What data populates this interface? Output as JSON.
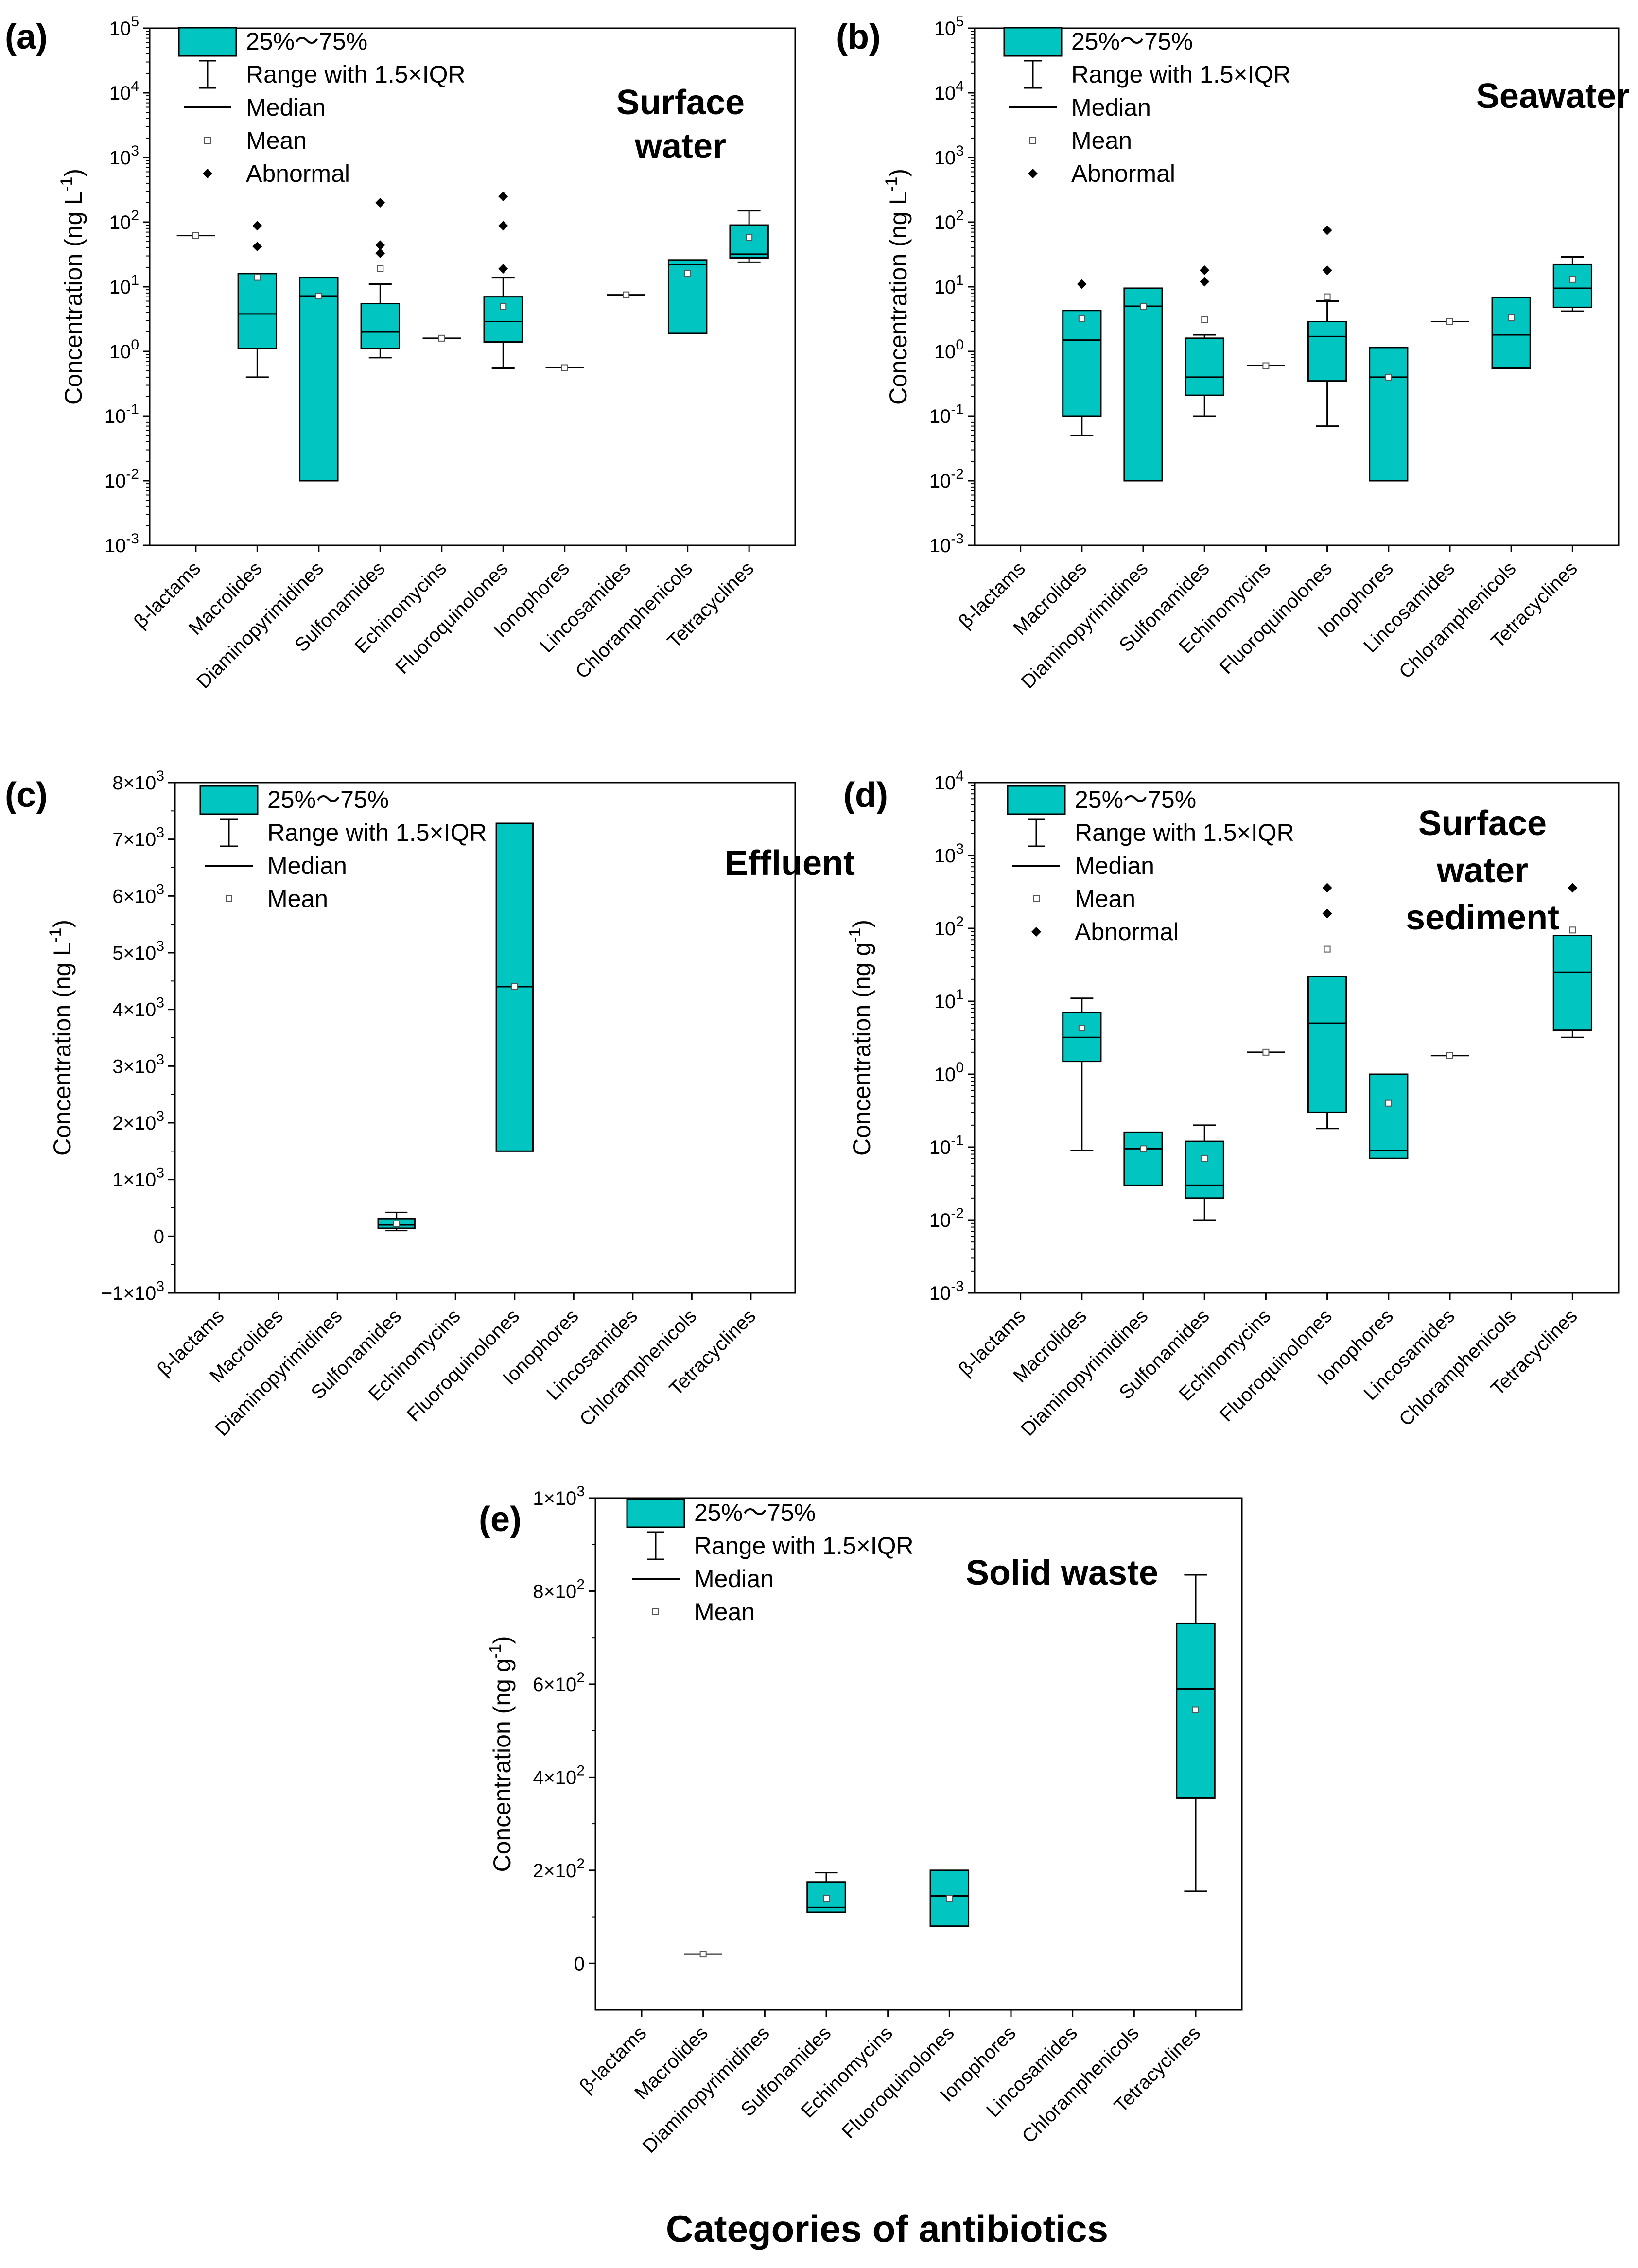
{
  "figure": {
    "xlabel": "Categories of antibiotics",
    "box_color": "#00C5C0",
    "legend": {
      "box": "25%～75%",
      "range": "Range with 1.5×IQR",
      "median": "Median",
      "mean": "Mean",
      "outlier": "Abnormal"
    }
  },
  "chart_data": [
    {
      "id": "a",
      "panel_label": "(a)",
      "title_lines": [
        "Surface",
        "water"
      ],
      "type": "box",
      "scale": "log",
      "ylim": [
        0.001,
        100000
      ],
      "ylabel": "Concentration (ng L",
      "ylabel_sup": "-1",
      "ylabel_end": ")",
      "yticks": [
        {
          "v": 0.001,
          "b": "10",
          "e": "-3"
        },
        {
          "v": 0.01,
          "b": "10",
          "e": "-2"
        },
        {
          "v": 0.1,
          "b": "10",
          "e": "-1"
        },
        {
          "v": 1,
          "b": "10",
          "e": "0"
        },
        {
          "v": 10,
          "b": "10",
          "e": "1"
        },
        {
          "v": 100,
          "b": "10",
          "e": "2"
        },
        {
          "v": 1000,
          "b": "10",
          "e": "3"
        },
        {
          "v": 10000,
          "b": "10",
          "e": "4"
        },
        {
          "v": 100000,
          "b": "10",
          "e": "5"
        }
      ],
      "legend_items": [
        "box",
        "range",
        "median",
        "mean",
        "outlier"
      ],
      "categories": [
        "β-lactams",
        "Macrolides",
        "Diaminopyrimidines",
        "Sulfonamides",
        "Echinomycins",
        "Fluoroquinolones",
        "Ionophores",
        "Lincosamides",
        "Chloramphenicols",
        "Tetracyclines"
      ],
      "boxes": [
        {
          "q1": 62,
          "q3": 62,
          "median": 62,
          "mean": 62,
          "wlo": 62,
          "whi": 62,
          "outliers": []
        },
        {
          "q1": 1.1,
          "q3": 16,
          "median": 3.8,
          "mean": 14,
          "wlo": 0.4,
          "whi": 16,
          "outliers": [
            42,
            88
          ]
        },
        {
          "q1": 0.01,
          "q3": 14,
          "median": 7.2,
          "mean": 7.2,
          "wlo": 0.01,
          "whi": 14,
          "outliers": []
        },
        {
          "q1": 1.1,
          "q3": 5.5,
          "median": 2.0,
          "mean": 19,
          "wlo": 0.8,
          "whi": 11,
          "outliers": [
            33,
            44,
            200
          ]
        },
        {
          "q1": 1.6,
          "q3": 1.6,
          "median": 1.6,
          "mean": 1.6,
          "wlo": 1.6,
          "whi": 1.6,
          "outliers": []
        },
        {
          "q1": 1.4,
          "q3": 7.0,
          "median": 2.9,
          "mean": 5.0,
          "wlo": 0.55,
          "whi": 14,
          "outliers": [
            19,
            88,
            250
          ]
        },
        {
          "q1": 0.56,
          "q3": 0.56,
          "median": 0.56,
          "mean": 0.56,
          "wlo": 0.56,
          "whi": 0.56,
          "outliers": []
        },
        {
          "q1": 7.5,
          "q3": 7.5,
          "median": 7.5,
          "mean": 7.5,
          "wlo": 7.5,
          "whi": 7.5,
          "outliers": []
        },
        {
          "q1": 1.9,
          "q3": 26,
          "median": 22,
          "mean": 16,
          "wlo": 1.9,
          "whi": 26,
          "outliers": []
        },
        {
          "q1": 28,
          "q3": 90,
          "median": 32,
          "mean": 58,
          "wlo": 24,
          "whi": 150,
          "outliers": []
        }
      ]
    },
    {
      "id": "b",
      "panel_label": "(b)",
      "title_lines": [
        "Seawater"
      ],
      "type": "box",
      "scale": "log",
      "ylim": [
        0.001,
        100000
      ],
      "ylabel": "Concentration (ng L",
      "ylabel_sup": "-1",
      "ylabel_end": ")",
      "yticks": [
        {
          "v": 0.001,
          "b": "10",
          "e": "-3"
        },
        {
          "v": 0.01,
          "b": "10",
          "e": "-2"
        },
        {
          "v": 0.1,
          "b": "10",
          "e": "-1"
        },
        {
          "v": 1,
          "b": "10",
          "e": "0"
        },
        {
          "v": 10,
          "b": "10",
          "e": "1"
        },
        {
          "v": 100,
          "b": "10",
          "e": "2"
        },
        {
          "v": 1000,
          "b": "10",
          "e": "3"
        },
        {
          "v": 10000,
          "b": "10",
          "e": "4"
        },
        {
          "v": 100000,
          "b": "10",
          "e": "5"
        }
      ],
      "legend_items": [
        "box",
        "range",
        "median",
        "mean",
        "outlier"
      ],
      "categories": [
        "β-lactams",
        "Macrolides",
        "Diaminopyrimidines",
        "Sulfonamides",
        "Echinomycins",
        "Fluoroquinolones",
        "Ionophores",
        "Lincosamides",
        "Chloramphenicols",
        "Tetracyclines"
      ],
      "boxes": [
        null,
        {
          "q1": 0.1,
          "q3": 4.3,
          "median": 1.5,
          "mean": 3.2,
          "wlo": 0.05,
          "whi": 4.3,
          "outliers": [
            11
          ]
        },
        {
          "q1": 0.01,
          "q3": 9.5,
          "median": 5.0,
          "mean": 5.0,
          "wlo": 0.01,
          "whi": 9.5,
          "outliers": []
        },
        {
          "q1": 0.21,
          "q3": 1.6,
          "median": 0.4,
          "mean": 3.1,
          "wlo": 0.1,
          "whi": 1.8,
          "outliers": [
            12,
            18
          ]
        },
        {
          "q1": 0.6,
          "q3": 0.6,
          "median": 0.6,
          "mean": 0.6,
          "wlo": 0.6,
          "whi": 0.6,
          "outliers": []
        },
        {
          "q1": 0.35,
          "q3": 2.9,
          "median": 1.7,
          "mean": 7.0,
          "wlo": 0.07,
          "whi": 6.0,
          "outliers": [
            18,
            75
          ]
        },
        {
          "q1": 0.01,
          "q3": 1.15,
          "median": 0.4,
          "mean": 0.4,
          "wlo": 0.01,
          "whi": 1.15,
          "outliers": []
        },
        {
          "q1": 2.9,
          "q3": 2.9,
          "median": 2.9,
          "mean": 2.9,
          "wlo": 2.9,
          "whi": 2.9,
          "outliers": []
        },
        {
          "q1": 0.55,
          "q3": 6.8,
          "median": 1.8,
          "mean": 3.3,
          "wlo": 0.55,
          "whi": 6.8,
          "outliers": []
        },
        {
          "q1": 4.8,
          "q3": 22,
          "median": 9.5,
          "mean": 13,
          "wlo": 4.2,
          "whi": 29,
          "outliers": []
        }
      ]
    },
    {
      "id": "c",
      "panel_label": "(c)",
      "title_lines": [
        "Effluent"
      ],
      "type": "box",
      "scale": "linear",
      "ylim": [
        -1000,
        8000
      ],
      "ylabel": "Concentration (ng L",
      "ylabel_sup": "-1",
      "ylabel_end": ")",
      "yticks": [
        {
          "v": -1000,
          "b": "−1×10",
          "e": "3"
        },
        {
          "v": 0,
          "b": "0",
          "e": ""
        },
        {
          "v": 1000,
          "b": "1×10",
          "e": "3"
        },
        {
          "v": 2000,
          "b": "2×10",
          "e": "3"
        },
        {
          "v": 3000,
          "b": "3×10",
          "e": "3"
        },
        {
          "v": 4000,
          "b": "4×10",
          "e": "3"
        },
        {
          "v": 5000,
          "b": "5×10",
          "e": "3"
        },
        {
          "v": 6000,
          "b": "6×10",
          "e": "3"
        },
        {
          "v": 7000,
          "b": "7×10",
          "e": "3"
        },
        {
          "v": 8000,
          "b": "8×10",
          "e": "3"
        }
      ],
      "legend_items": [
        "box",
        "range",
        "median",
        "mean"
      ],
      "categories": [
        "β-lactams",
        "Macrolides",
        "Diaminopyrimidines",
        "Sulfonamides",
        "Echinomycins",
        "Fluoroquinolones",
        "Ionophores",
        "Lincosamides",
        "Chloramphenicols",
        "Tetracyclines"
      ],
      "boxes": [
        null,
        null,
        null,
        {
          "q1": 140,
          "q3": 310,
          "median": 200,
          "mean": 220,
          "wlo": 100,
          "whi": 420,
          "outliers": []
        },
        null,
        {
          "q1": 1500,
          "q3": 7280,
          "median": 4400,
          "mean": 4400,
          "wlo": 1500,
          "whi": 7280,
          "outliers": []
        },
        null,
        null,
        null,
        null
      ]
    },
    {
      "id": "d",
      "panel_label": "(d)",
      "title_lines": [
        "Surface",
        "water",
        "sediment"
      ],
      "type": "box",
      "scale": "log",
      "ylim": [
        0.001,
        10000
      ],
      "ylabel": "Concentration (ng g",
      "ylabel_sup": "-1",
      "ylabel_end": ")",
      "yticks": [
        {
          "v": 0.001,
          "b": "10",
          "e": "-3"
        },
        {
          "v": 0.01,
          "b": "10",
          "e": "-2"
        },
        {
          "v": 0.1,
          "b": "10",
          "e": "-1"
        },
        {
          "v": 1,
          "b": "10",
          "e": "0"
        },
        {
          "v": 10,
          "b": "10",
          "e": "1"
        },
        {
          "v": 100,
          "b": "10",
          "e": "2"
        },
        {
          "v": 1000,
          "b": "10",
          "e": "3"
        },
        {
          "v": 10000,
          "b": "10",
          "e": "4"
        }
      ],
      "legend_items": [
        "box",
        "range",
        "median",
        "mean",
        "outlier"
      ],
      "categories": [
        "β-lactams",
        "Macrolides",
        "Diaminopyrimidines",
        "Sulfonamides",
        "Echinomycins",
        "Fluoroquinolones",
        "Ionophores",
        "Lincosamides",
        "Chloramphenicols",
        "Tetracyclines"
      ],
      "boxes": [
        null,
        {
          "q1": 1.5,
          "q3": 7.0,
          "median": 3.2,
          "mean": 4.3,
          "wlo": 0.09,
          "whi": 11,
          "outliers": []
        },
        {
          "q1": 0.03,
          "q3": 0.16,
          "median": 0.095,
          "mean": 0.095,
          "wlo": 0.03,
          "whi": 0.16,
          "outliers": []
        },
        {
          "q1": 0.02,
          "q3": 0.12,
          "median": 0.03,
          "mean": 0.07,
          "wlo": 0.01,
          "whi": 0.2,
          "outliers": []
        },
        {
          "q1": 2.0,
          "q3": 2.0,
          "median": 2.0,
          "mean": 2.0,
          "wlo": 2.0,
          "whi": 2.0,
          "outliers": []
        },
        {
          "q1": 0.3,
          "q3": 22,
          "median": 5.0,
          "mean": 52,
          "wlo": 0.18,
          "whi": 22,
          "outliers": [
            160,
            360
          ]
        },
        {
          "q1": 0.07,
          "q3": 1.0,
          "median": 0.09,
          "mean": 0.4,
          "wlo": 0.07,
          "whi": 1.0,
          "outliers": []
        },
        {
          "q1": 1.8,
          "q3": 1.8,
          "median": 1.8,
          "mean": 1.8,
          "wlo": 1.8,
          "whi": 1.8,
          "outliers": []
        },
        null,
        {
          "q1": 4.0,
          "q3": 80,
          "median": 25,
          "mean": 95,
          "wlo": 3.2,
          "whi": 80,
          "outliers": [
            360
          ]
        }
      ]
    },
    {
      "id": "e",
      "panel_label": "(e)",
      "title_lines": [
        "Solid waste"
      ],
      "type": "box",
      "scale": "linear",
      "ylim": [
        -100,
        1000
      ],
      "ylabel": "Concentration (ng g",
      "ylabel_sup": "-1",
      "ylabel_end": ")",
      "yticks": [
        {
          "v": 0,
          "b": "0",
          "e": ""
        },
        {
          "v": 200,
          "b": "2×10",
          "e": "2"
        },
        {
          "v": 400,
          "b": "4×10",
          "e": "2"
        },
        {
          "v": 600,
          "b": "6×10",
          "e": "2"
        },
        {
          "v": 800,
          "b": "8×10",
          "e": "2"
        },
        {
          "v": 1000,
          "b": "1×10",
          "e": "3"
        }
      ],
      "legend_items": [
        "box",
        "range",
        "median",
        "mean"
      ],
      "categories": [
        "β-lactams",
        "Macrolides",
        "Diaminopyrimidines",
        "Sulfonamides",
        "Echinomycins",
        "Fluoroquinolones",
        "Ionophores",
        "Lincosamides",
        "Chloramphenicols",
        "Tetracyclines"
      ],
      "boxes": [
        null,
        {
          "q1": 20,
          "q3": 20,
          "median": 20,
          "mean": 20,
          "wlo": 20,
          "whi": 20,
          "outliers": []
        },
        null,
        {
          "q1": 110,
          "q3": 175,
          "median": 120,
          "mean": 140,
          "wlo": 110,
          "whi": 195,
          "outliers": []
        },
        null,
        {
          "q1": 80,
          "q3": 200,
          "median": 145,
          "mean": 140,
          "wlo": 80,
          "whi": 200,
          "outliers": []
        },
        null,
        null,
        null,
        {
          "q1": 355,
          "q3": 730,
          "median": 590,
          "mean": 545,
          "wlo": 155,
          "whi": 835,
          "outliers": []
        }
      ]
    }
  ]
}
